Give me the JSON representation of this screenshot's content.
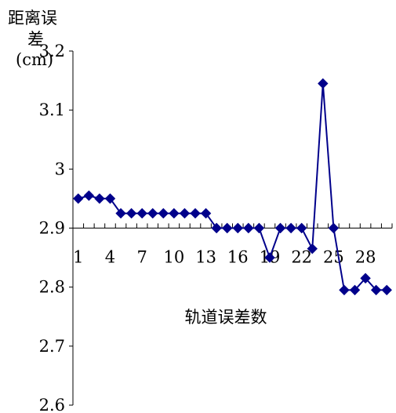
{
  "chart_data": {
    "type": "line",
    "ylabel_lines": [
      "距离误",
      "差",
      "(cm)"
    ],
    "xlabel": "轨道误差数",
    "ylim": [
      2.6,
      3.2
    ],
    "yticks": [
      2.6,
      2.7,
      2.8,
      2.9,
      3.0,
      3.1,
      3.2
    ],
    "ytick_labels": [
      "2.6",
      "2.7",
      "2.8",
      "2.9",
      "3",
      "3.1",
      "3.2"
    ],
    "x": [
      1,
      2,
      3,
      4,
      5,
      6,
      7,
      8,
      9,
      10,
      11,
      12,
      13,
      14,
      15,
      16,
      17,
      18,
      19,
      20,
      21,
      22,
      23,
      24,
      25,
      26,
      27,
      28,
      29,
      30
    ],
    "xtick_labels": [
      "1",
      "4",
      "7",
      "10",
      "13",
      "16",
      "19",
      "22",
      "25",
      "28"
    ],
    "x_axis_crosses_at": 2.9,
    "series": [
      {
        "color": "#00008B",
        "marker": "diamond",
        "values": [
          2.95,
          2.955,
          2.95,
          2.95,
          2.925,
          2.925,
          2.925,
          2.925,
          2.925,
          2.925,
          2.925,
          2.925,
          2.925,
          2.9,
          2.9,
          2.9,
          2.9,
          2.9,
          2.85,
          2.9,
          2.9,
          2.9,
          2.865,
          3.145,
          2.9,
          2.795,
          2.795,
          2.815,
          2.795,
          2.795
        ]
      }
    ]
  }
}
